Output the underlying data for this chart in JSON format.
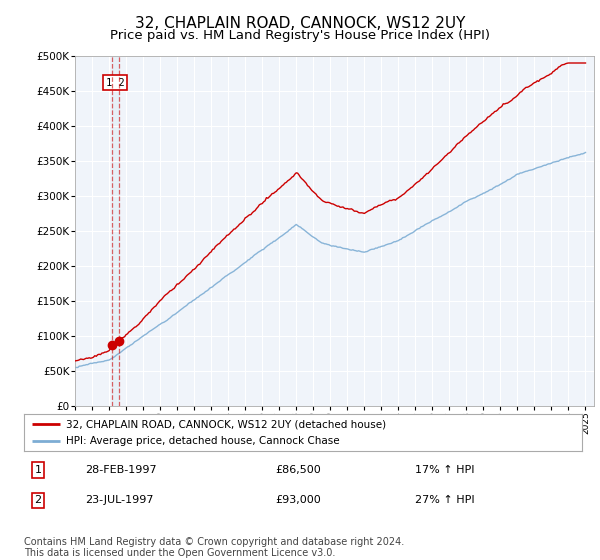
{
  "title": "32, CHAPLAIN ROAD, CANNOCK, WS12 2UY",
  "subtitle": "Price paid vs. HM Land Registry's House Price Index (HPI)",
  "title_fontsize": 11,
  "subtitle_fontsize": 9.5,
  "ylim": [
    0,
    500000
  ],
  "yticks": [
    0,
    50000,
    100000,
    150000,
    200000,
    250000,
    300000,
    350000,
    400000,
    450000,
    500000
  ],
  "ytick_labels": [
    "£0",
    "£50K",
    "£100K",
    "£150K",
    "£200K",
    "£250K",
    "£300K",
    "£350K",
    "£400K",
    "£450K",
    "£500K"
  ],
  "xlim_start": 1995.0,
  "xlim_end": 2025.5,
  "sale1_date": 1997.16,
  "sale1_price": 86500,
  "sale2_date": 1997.56,
  "sale2_price": 93000,
  "sale1_label": "1",
  "sale2_label": "2",
  "sale1_table": "28-FEB-1997",
  "sale1_price_str": "£86,500",
  "sale1_hpi": "17% ↑ HPI",
  "sale2_table": "23-JUL-1997",
  "sale2_price_str": "£93,000",
  "sale2_hpi": "27% ↑ HPI",
  "legend_line1": "32, CHAPLAIN ROAD, CANNOCK, WS12 2UY (detached house)",
  "legend_line2": "HPI: Average price, detached house, Cannock Chase",
  "red_color": "#cc0000",
  "blue_color": "#7dadd4",
  "marker_color": "#cc0000",
  "footer": "Contains HM Land Registry data © Crown copyright and database right 2024.\nThis data is licensed under the Open Government Licence v3.0.",
  "footer_fontsize": 7,
  "bg_color": "#f0f4f8"
}
